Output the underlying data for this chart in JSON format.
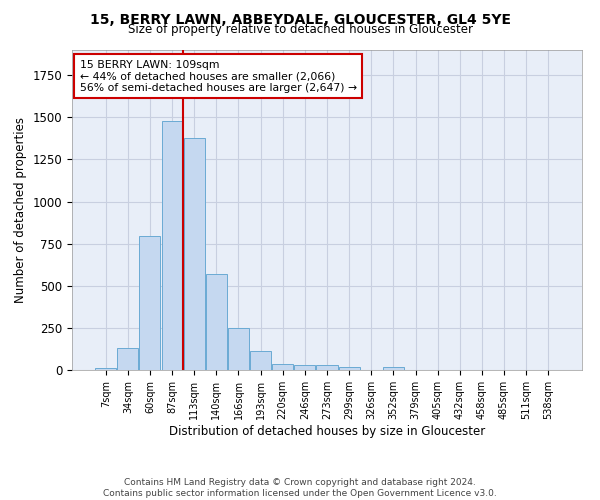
{
  "title_line1": "15, BERRY LAWN, ABBEYDALE, GLOUCESTER, GL4 5YE",
  "title_line2": "Size of property relative to detached houses in Gloucester",
  "xlabel": "Distribution of detached houses by size in Gloucester",
  "ylabel": "Number of detached properties",
  "bar_color": "#c5d8f0",
  "bar_edge_color": "#6aaad4",
  "grid_color": "#c8cfe0",
  "bg_color": "#e8eef8",
  "vline_color": "#cc0000",
  "vline_x": 3.5,
  "annotation_text": "15 BERRY LAWN: 109sqm\n← 44% of detached houses are smaller (2,066)\n56% of semi-detached houses are larger (2,647) →",
  "annotation_box_color": "#cc0000",
  "categories": [
    "7sqm",
    "34sqm",
    "60sqm",
    "87sqm",
    "113sqm",
    "140sqm",
    "166sqm",
    "193sqm",
    "220sqm",
    "246sqm",
    "273sqm",
    "299sqm",
    "326sqm",
    "352sqm",
    "379sqm",
    "405sqm",
    "432sqm",
    "458sqm",
    "485sqm",
    "511sqm",
    "538sqm"
  ],
  "values": [
    10,
    130,
    795,
    1480,
    1380,
    570,
    250,
    110,
    35,
    30,
    30,
    20,
    0,
    20,
    0,
    0,
    0,
    0,
    0,
    0,
    0
  ],
  "ylim": [
    0,
    1900
  ],
  "footer_line1": "Contains HM Land Registry data © Crown copyright and database right 2024.",
  "footer_line2": "Contains public sector information licensed under the Open Government Licence v3.0."
}
